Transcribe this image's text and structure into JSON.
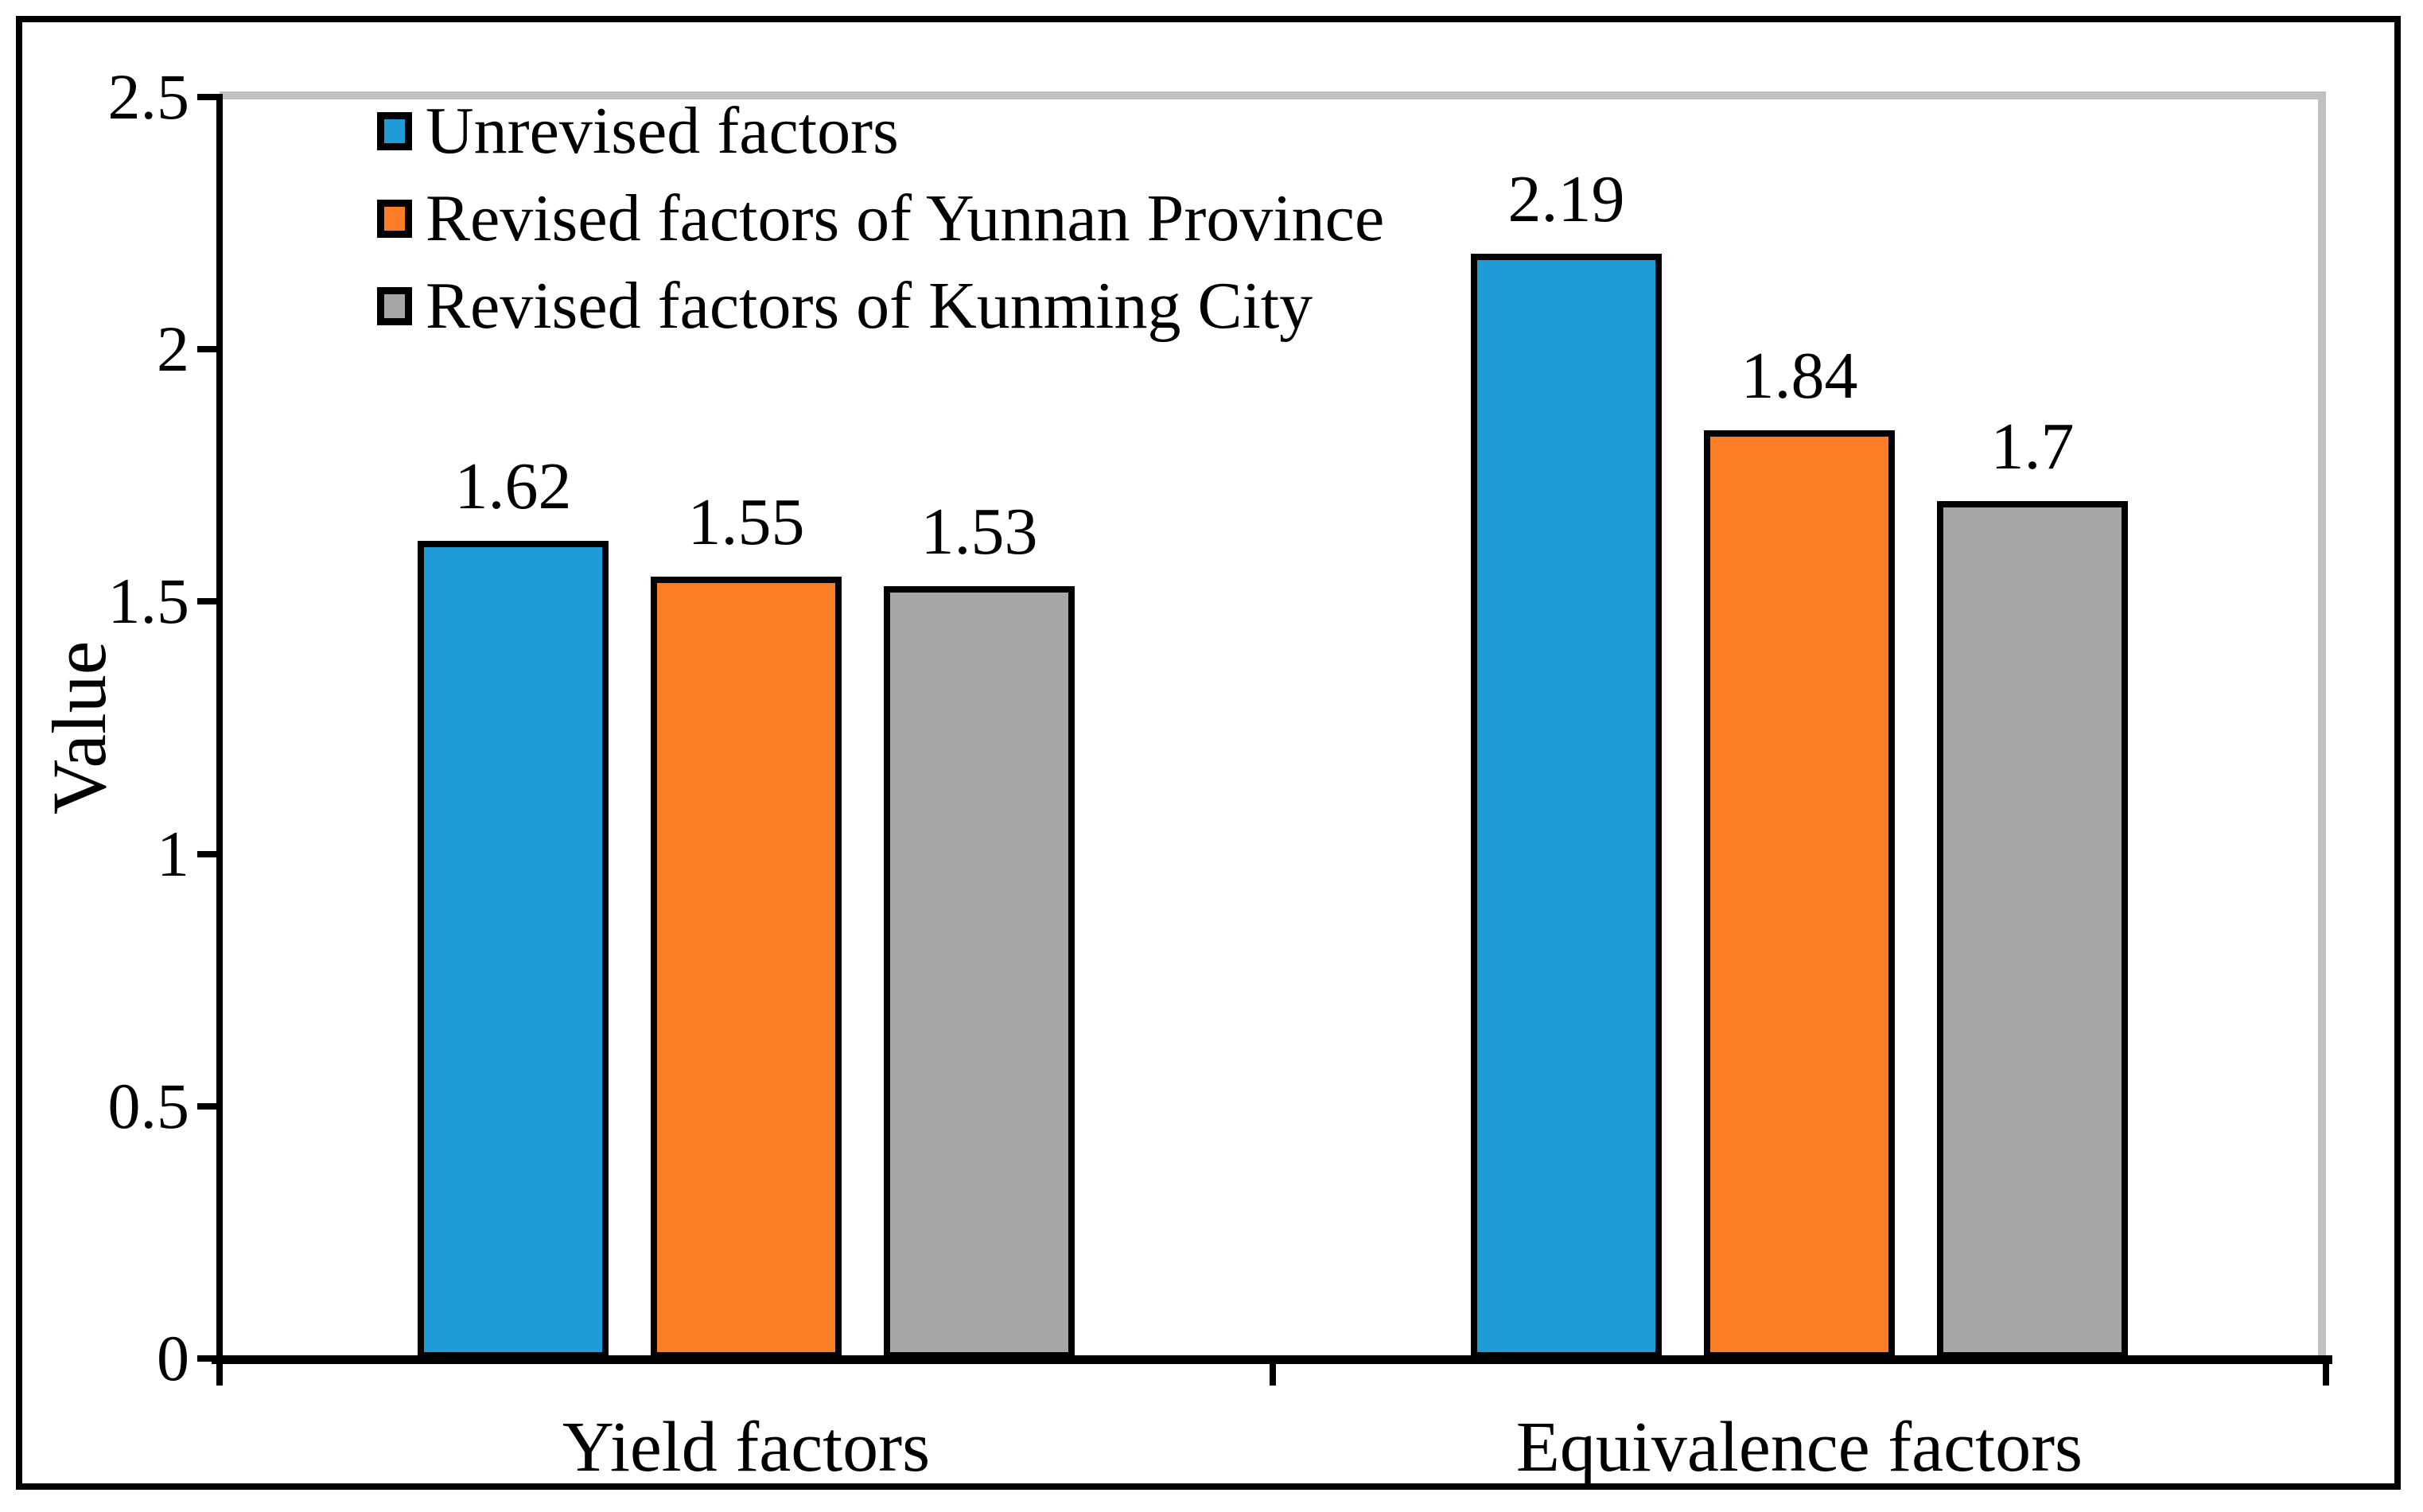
{
  "chart_data": {
    "type": "bar",
    "title": "",
    "categories": [
      "Yield factors",
      "Equivalence factors"
    ],
    "series": [
      {
        "name": "Unrevised factors",
        "color": "#1F9BD7",
        "values": [
          1.62,
          2.19
        ],
        "labels": [
          "1.62",
          "2.19"
        ]
      },
      {
        "name": "Revised factors of Yunnan Province",
        "color": "#FB7D26",
        "values": [
          1.55,
          1.84
        ],
        "labels": [
          "1.55",
          "1.84"
        ]
      },
      {
        "name": "Revised factors of Kunming City",
        "color": "#A6A6A6",
        "values": [
          1.53,
          1.7
        ],
        "labels": [
          "1.53",
          "1.7"
        ]
      }
    ],
    "ylabel": "Value",
    "xlabel": "",
    "ylim": [
      0,
      2.5
    ],
    "yticks": [
      {
        "value": 0,
        "label": "0"
      },
      {
        "value": 0.5,
        "label": "0.5"
      },
      {
        "value": 1,
        "label": "1"
      },
      {
        "value": 1.5,
        "label": "1.5"
      },
      {
        "value": 2,
        "label": "2"
      },
      {
        "value": 2.5,
        "label": "2.5"
      }
    ],
    "legend_position": "top-left",
    "grid": "top-border-only",
    "data_labels_shown": true,
    "styles": {
      "axis_color": "#000000",
      "bar_outline_color": "#000000",
      "plot_border_color": "#C0C0C0",
      "text_color": "#000000",
      "background_color": "#FFFFFF"
    }
  }
}
